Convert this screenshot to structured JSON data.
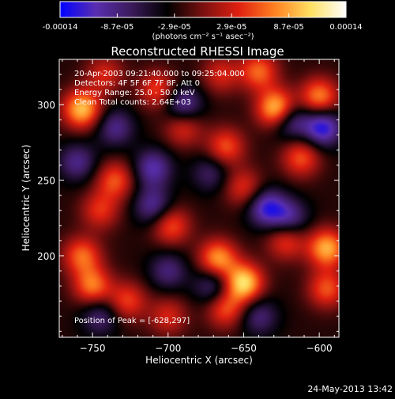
{
  "colorbar": {
    "tick_labels": [
      "-0.00014",
      "-8.7e-05",
      "-2.9e-05",
      "2.9e-05",
      "8.7e-05",
      "0.00014"
    ],
    "unit_label": "(photons cm⁻² s⁻¹ asec⁻²)",
    "range": [
      -0.00014,
      0.00014
    ],
    "stops": [
      "#0000ff",
      "#5a2eb0",
      "#3a1a5a",
      "#000000",
      "#7a1010",
      "#e02010",
      "#ff8020",
      "#ffe060",
      "#ffffff"
    ]
  },
  "chart_data": {
    "type": "heatmap",
    "title": "Reconstructed RHESSI Image",
    "xlabel": "Heliocentric X (arcsec)",
    "ylabel": "Heliocentric Y (arcsec)",
    "xlim": [
      -772,
      -587
    ],
    "ylim": [
      146,
      330
    ],
    "xticks": [
      -750,
      -700,
      -650,
      -600
    ],
    "yticks": [
      200,
      250,
      300
    ],
    "info_lines": [
      "20-Apr-2003 09:21:40.000 to 09:25:04.000",
      "Detectors: 4F 5F 6F 7F 8F, Att 0",
      "Energy Range: 25.0 - 50.0 keV",
      "Clean    Total counts: 2.64E+03"
    ],
    "peak_label": "Position of Peak = [-628,297]",
    "peak": [
      -628,
      297
    ],
    "blobs": [
      {
        "x": -628,
        "y": 297,
        "v": 1.0
      },
      {
        "x": -600,
        "y": 305,
        "v": 0.7
      },
      {
        "x": -757,
        "y": 297,
        "v": 0.85
      },
      {
        "x": -640,
        "y": 322,
        "v": 0.6
      },
      {
        "x": -735,
        "y": 250,
        "v": 0.55
      },
      {
        "x": -745,
        "y": 230,
        "v": 0.45
      },
      {
        "x": -698,
        "y": 220,
        "v": 0.55
      },
      {
        "x": -707,
        "y": 310,
        "v": 0.5
      },
      {
        "x": -662,
        "y": 272,
        "v": 0.55
      },
      {
        "x": -650,
        "y": 245,
        "v": 0.45
      },
      {
        "x": -612,
        "y": 265,
        "v": 0.55
      },
      {
        "x": -667,
        "y": 198,
        "v": 0.75
      },
      {
        "x": -650,
        "y": 182,
        "v": 0.95
      },
      {
        "x": -662,
        "y": 165,
        "v": 0.55
      },
      {
        "x": -757,
        "y": 200,
        "v": 0.6
      },
      {
        "x": -750,
        "y": 180,
        "v": 0.65
      },
      {
        "x": -727,
        "y": 170,
        "v": 0.5
      },
      {
        "x": -595,
        "y": 205,
        "v": 0.8
      },
      {
        "x": -595,
        "y": 178,
        "v": 0.55
      },
      {
        "x": -622,
        "y": 210,
        "v": 0.5
      },
      {
        "x": -700,
        "y": 160,
        "v": 0.4
      },
      {
        "x": -690,
        "y": 285,
        "v": 0.45
      },
      {
        "x": -742,
        "y": 320,
        "v": 0.4
      },
      {
        "x": -665,
        "y": 320,
        "v": 0.4
      },
      {
        "x": -710,
        "y": 258,
        "v": -0.55
      },
      {
        "x": -620,
        "y": 290,
        "v": -0.6
      },
      {
        "x": -598,
        "y": 285,
        "v": -0.75
      },
      {
        "x": -690,
        "y": 300,
        "v": -0.55
      },
      {
        "x": -735,
        "y": 285,
        "v": -0.45
      },
      {
        "x": -710,
        "y": 233,
        "v": -0.5
      },
      {
        "x": -635,
        "y": 232,
        "v": -0.65
      },
      {
        "x": -670,
        "y": 180,
        "v": -0.45
      },
      {
        "x": -620,
        "y": 225,
        "v": -0.5
      },
      {
        "x": -760,
        "y": 262,
        "v": -0.45
      },
      {
        "x": -745,
        "y": 160,
        "v": -0.4
      },
      {
        "x": -700,
        "y": 190,
        "v": -0.4
      },
      {
        "x": -640,
        "y": 160,
        "v": -0.4
      },
      {
        "x": -672,
        "y": 255,
        "v": -0.35
      }
    ]
  },
  "timestamp": "24-May-2013 13:42"
}
